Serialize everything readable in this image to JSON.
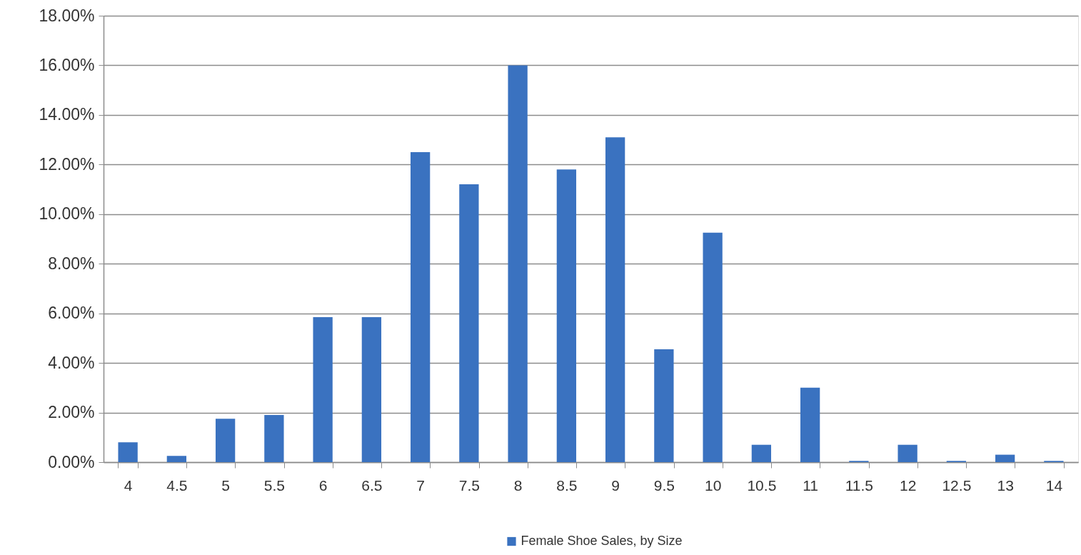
{
  "chart_data": {
    "type": "bar",
    "categories": [
      "4",
      "4.5",
      "5",
      "5.5",
      "6",
      "6.5",
      "7",
      "7.5",
      "8",
      "8.5",
      "9",
      "9.5",
      "10",
      "10.5",
      "11",
      "11.5",
      "12",
      "12.5",
      "13",
      "14"
    ],
    "series": [
      {
        "name": "Female Shoe Sales, by Size",
        "color": "#3a72c0",
        "values": [
          0.8,
          0.25,
          1.75,
          1.9,
          5.85,
          5.85,
          12.5,
          11.2,
          16.0,
          11.8,
          13.1,
          4.55,
          9.25,
          0.7,
          3.0,
          0.05,
          0.7,
          0.05,
          0.3,
          0.05
        ]
      }
    ],
    "ylim": [
      0,
      18
    ],
    "yticks": [
      {
        "value": 0,
        "label": "0.00%"
      },
      {
        "value": 2,
        "label": "2.00%"
      },
      {
        "value": 4,
        "label": "4.00%"
      },
      {
        "value": 6,
        "label": "6.00%"
      },
      {
        "value": 8,
        "label": "8.00%"
      },
      {
        "value": 10,
        "label": "10.00%"
      },
      {
        "value": 12,
        "label": "12.00%"
      },
      {
        "value": 14,
        "label": "14.00%"
      },
      {
        "value": 16,
        "label": "16.00%"
      },
      {
        "value": 18,
        "label": "18.00%"
      }
    ],
    "grid": "y",
    "legend": "bottom"
  }
}
